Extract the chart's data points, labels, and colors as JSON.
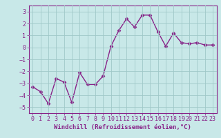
{
  "x": [
    0,
    1,
    2,
    3,
    4,
    5,
    6,
    7,
    8,
    9,
    10,
    11,
    12,
    13,
    14,
    15,
    16,
    17,
    18,
    19,
    20,
    21,
    22,
    23
  ],
  "y": [
    -3.3,
    -3.7,
    -4.7,
    -2.6,
    -2.9,
    -4.6,
    -2.1,
    -3.1,
    -3.1,
    -2.4,
    0.1,
    1.4,
    2.4,
    1.7,
    2.7,
    2.7,
    1.3,
    0.1,
    1.2,
    0.4,
    0.3,
    0.4,
    0.2,
    0.2
  ],
  "line_color": "#882288",
  "marker": "D",
  "marker_size": 2.5,
  "bg_color": "#c8e8e8",
  "grid_color": "#a0c8c8",
  "xlabel": "Windchill (Refroidissement éolien,°C)",
  "xlabel_fontsize": 6.5,
  "tick_fontsize": 6.0,
  "ylim": [
    -5.5,
    3.5
  ],
  "yticks": [
    -5,
    -4,
    -3,
    -2,
    -1,
    0,
    1,
    2,
    3
  ],
  "xticks": [
    0,
    1,
    2,
    3,
    4,
    5,
    6,
    7,
    8,
    9,
    10,
    11,
    12,
    13,
    14,
    15,
    16,
    17,
    18,
    19,
    20,
    21,
    22,
    23
  ],
  "line_width": 1.0
}
